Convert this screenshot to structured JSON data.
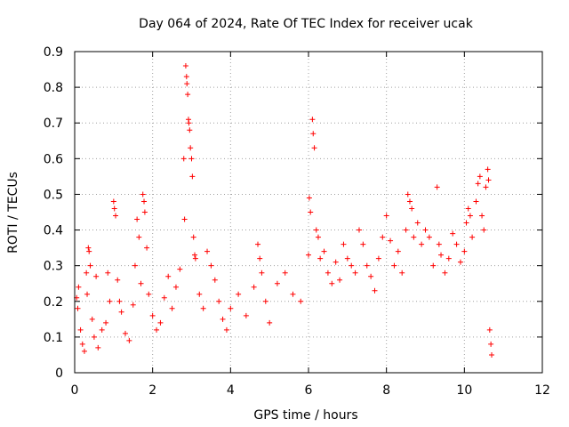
{
  "chart_data": {
    "type": "scatter",
    "title": "Day 064 of 2024, Rate Of TEC Index for receiver ucak",
    "xlabel": "GPS time / hours",
    "ylabel": "ROTI / TECUs",
    "xlim": [
      0,
      12
    ],
    "ylim": [
      0,
      0.9
    ],
    "x_ticks": [
      "0",
      "2",
      "4",
      "6",
      "8",
      "10",
      "12"
    ],
    "y_ticks": [
      "0",
      "0.1",
      "0.2",
      "0.3",
      "0.4",
      "0.5",
      "0.6",
      "0.7",
      "0.8",
      "0.9"
    ],
    "grid": true,
    "marker": "plus",
    "color": "#ff0000",
    "series": [
      {
        "points": [
          [
            0.05,
            0.21
          ],
          [
            0.08,
            0.18
          ],
          [
            0.1,
            0.24
          ],
          [
            0.15,
            0.12
          ],
          [
            0.2,
            0.08
          ],
          [
            0.25,
            0.06
          ],
          [
            0.3,
            0.28
          ],
          [
            0.32,
            0.22
          ],
          [
            0.35,
            0.35
          ],
          [
            0.37,
            0.34
          ],
          [
            0.4,
            0.3
          ],
          [
            0.45,
            0.15
          ],
          [
            0.5,
            0.1
          ],
          [
            0.55,
            0.27
          ],
          [
            0.6,
            0.07
          ],
          [
            0.7,
            0.12
          ],
          [
            0.8,
            0.14
          ],
          [
            0.85,
            0.28
          ],
          [
            0.9,
            0.2
          ],
          [
            1.0,
            0.48
          ],
          [
            1.02,
            0.46
          ],
          [
            1.05,
            0.44
          ],
          [
            1.1,
            0.26
          ],
          [
            1.15,
            0.2
          ],
          [
            1.2,
            0.17
          ],
          [
            1.3,
            0.11
          ],
          [
            1.4,
            0.09
          ],
          [
            1.5,
            0.19
          ],
          [
            1.55,
            0.3
          ],
          [
            1.6,
            0.43
          ],
          [
            1.65,
            0.38
          ],
          [
            1.7,
            0.25
          ],
          [
            1.75,
            0.5
          ],
          [
            1.78,
            0.48
          ],
          [
            1.8,
            0.45
          ],
          [
            1.85,
            0.35
          ],
          [
            1.9,
            0.22
          ],
          [
            2.0,
            0.16
          ],
          [
            2.1,
            0.12
          ],
          [
            2.2,
            0.14
          ],
          [
            2.3,
            0.21
          ],
          [
            2.4,
            0.27
          ],
          [
            2.5,
            0.18
          ],
          [
            2.6,
            0.24
          ],
          [
            2.7,
            0.29
          ],
          [
            2.8,
            0.6
          ],
          [
            2.82,
            0.43
          ],
          [
            2.85,
            0.86
          ],
          [
            2.87,
            0.83
          ],
          [
            2.88,
            0.81
          ],
          [
            2.9,
            0.78
          ],
          [
            2.92,
            0.71
          ],
          [
            2.93,
            0.7
          ],
          [
            2.95,
            0.68
          ],
          [
            2.97,
            0.63
          ],
          [
            3.0,
            0.6
          ],
          [
            3.02,
            0.55
          ],
          [
            3.05,
            0.38
          ],
          [
            3.08,
            0.33
          ],
          [
            3.1,
            0.32
          ],
          [
            3.2,
            0.22
          ],
          [
            3.3,
            0.18
          ],
          [
            3.4,
            0.34
          ],
          [
            3.5,
            0.3
          ],
          [
            3.6,
            0.26
          ],
          [
            3.7,
            0.2
          ],
          [
            3.8,
            0.15
          ],
          [
            3.9,
            0.12
          ],
          [
            4.0,
            0.18
          ],
          [
            4.2,
            0.22
          ],
          [
            4.4,
            0.16
          ],
          [
            4.6,
            0.24
          ],
          [
            4.7,
            0.36
          ],
          [
            4.75,
            0.32
          ],
          [
            4.8,
            0.28
          ],
          [
            4.9,
            0.2
          ],
          [
            5.0,
            0.14
          ],
          [
            5.2,
            0.25
          ],
          [
            5.4,
            0.28
          ],
          [
            5.6,
            0.22
          ],
          [
            5.8,
            0.2
          ],
          [
            6.0,
            0.33
          ],
          [
            6.02,
            0.49
          ],
          [
            6.05,
            0.45
          ],
          [
            6.1,
            0.71
          ],
          [
            6.12,
            0.67
          ],
          [
            6.15,
            0.63
          ],
          [
            6.2,
            0.4
          ],
          [
            6.25,
            0.38
          ],
          [
            6.3,
            0.32
          ],
          [
            6.4,
            0.34
          ],
          [
            6.5,
            0.28
          ],
          [
            6.6,
            0.25
          ],
          [
            6.7,
            0.31
          ],
          [
            6.8,
            0.26
          ],
          [
            6.9,
            0.36
          ],
          [
            7.0,
            0.32
          ],
          [
            7.1,
            0.3
          ],
          [
            7.2,
            0.28
          ],
          [
            7.3,
            0.4
          ],
          [
            7.4,
            0.36
          ],
          [
            7.5,
            0.3
          ],
          [
            7.6,
            0.27
          ],
          [
            7.7,
            0.23
          ],
          [
            7.8,
            0.32
          ],
          [
            7.9,
            0.38
          ],
          [
            8.0,
            0.44
          ],
          [
            8.1,
            0.37
          ],
          [
            8.2,
            0.3
          ],
          [
            8.3,
            0.34
          ],
          [
            8.4,
            0.28
          ],
          [
            8.5,
            0.4
          ],
          [
            8.55,
            0.5
          ],
          [
            8.6,
            0.48
          ],
          [
            8.65,
            0.46
          ],
          [
            8.7,
            0.38
          ],
          [
            8.8,
            0.42
          ],
          [
            8.9,
            0.36
          ],
          [
            9.0,
            0.4
          ],
          [
            9.1,
            0.38
          ],
          [
            9.2,
            0.3
          ],
          [
            9.3,
            0.52
          ],
          [
            9.35,
            0.36
          ],
          [
            9.4,
            0.33
          ],
          [
            9.5,
            0.28
          ],
          [
            9.6,
            0.32
          ],
          [
            9.7,
            0.39
          ],
          [
            9.8,
            0.36
          ],
          [
            9.9,
            0.31
          ],
          [
            10.0,
            0.34
          ],
          [
            10.05,
            0.42
          ],
          [
            10.1,
            0.46
          ],
          [
            10.15,
            0.44
          ],
          [
            10.2,
            0.38
          ],
          [
            10.3,
            0.48
          ],
          [
            10.35,
            0.53
          ],
          [
            10.4,
            0.55
          ],
          [
            10.45,
            0.44
          ],
          [
            10.5,
            0.4
          ],
          [
            10.55,
            0.52
          ],
          [
            10.6,
            0.57
          ],
          [
            10.62,
            0.54
          ],
          [
            10.65,
            0.12
          ],
          [
            10.68,
            0.08
          ],
          [
            10.7,
            0.05
          ]
        ]
      }
    ]
  }
}
